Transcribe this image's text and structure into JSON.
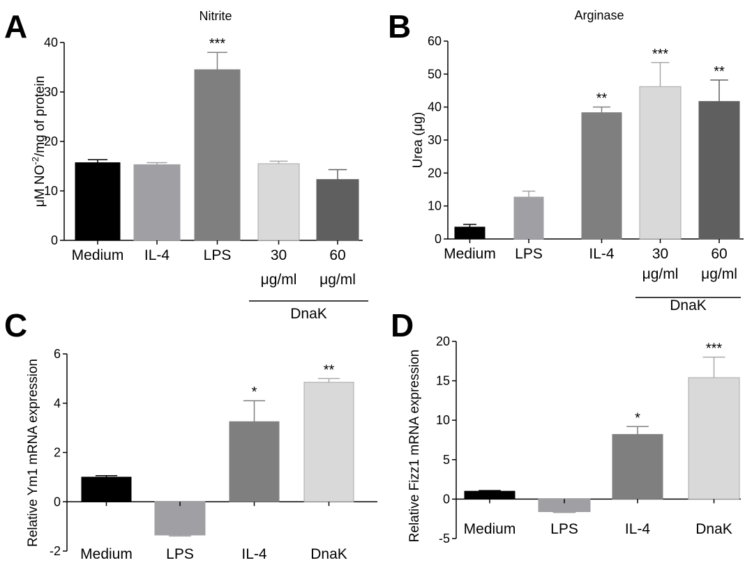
{
  "chart_data": [
    {
      "panel": "A",
      "type": "bar",
      "title": "Nitrite",
      "ylabel_parts": [
        "μM NO",
        "-2",
        "/mg of protein"
      ],
      "categories": [
        [
          "Medium"
        ],
        [
          "IL-4"
        ],
        [
          "LPS"
        ],
        [
          "30",
          "μg/ml"
        ],
        [
          "60",
          "μg/ml"
        ]
      ],
      "values": [
        15.7,
        15.3,
        34.5,
        15.5,
        12.3
      ],
      "errors": [
        0.6,
        0.4,
        3.5,
        0.5,
        2.0
      ],
      "colors": [
        "#000000",
        "#a0a0a4",
        "#7f7f7f",
        "#d9d9d9",
        "#5f5f5f"
      ],
      "significance": [
        "",
        "",
        "***",
        "",
        ""
      ],
      "ylim": [
        0,
        40
      ],
      "yticks": [
        0,
        10,
        20,
        30,
        40
      ],
      "group_label": "DnaK",
      "group_span": [
        3,
        4
      ]
    },
    {
      "panel": "B",
      "type": "bar",
      "title": "Arginase",
      "ylabel": "Urea (μg)",
      "categories": [
        [
          "Medium"
        ],
        [
          "LPS"
        ],
        [
          "IL-4"
        ],
        [
          "30",
          "μg/ml"
        ],
        [
          "60",
          "μg/ml"
        ]
      ],
      "values": [
        3.6,
        12.7,
        38.3,
        46.2,
        41.7
      ],
      "errors": [
        0.8,
        1.8,
        1.7,
        7.3,
        6.5
      ],
      "colors": [
        "#000000",
        "#a0a0a4",
        "#7f7f7f",
        "#d9d9d9",
        "#5f5f5f"
      ],
      "significance": [
        "",
        "",
        "**",
        "***",
        "**"
      ],
      "ylim": [
        0,
        60
      ],
      "yticks": [
        0,
        10,
        20,
        30,
        40,
        50,
        60
      ],
      "group_label": "DnaK",
      "group_span": [
        3,
        4
      ]
    },
    {
      "panel": "C",
      "type": "bar",
      "title": "",
      "ylabel": "Relative Ym1 mRNA expression",
      "categories": [
        [
          "Medium"
        ],
        [
          "LPS"
        ],
        [
          "IL-4"
        ],
        [
          "DnaK"
        ]
      ],
      "values": [
        1.0,
        -1.35,
        3.25,
        4.85
      ],
      "errors": [
        0.06,
        0.04,
        0.85,
        0.15
      ],
      "colors": [
        "#000000",
        "#a0a0a4",
        "#7f7f7f",
        "#d9d9d9"
      ],
      "significance": [
        "",
        "",
        "*",
        "**"
      ],
      "ylim": [
        -2,
        6
      ],
      "yticks": [
        -2,
        0,
        2,
        4,
        6
      ]
    },
    {
      "panel": "D",
      "type": "bar",
      "title": "",
      "ylabel": "Relative Fizz1 mRNA expression",
      "categories": [
        [
          "Medium"
        ],
        [
          "LPS"
        ],
        [
          "IL-4"
        ],
        [
          "DnaK"
        ]
      ],
      "values": [
        1.0,
        -1.6,
        8.2,
        15.4
      ],
      "errors": [
        0.08,
        0.1,
        1.0,
        2.6
      ],
      "colors": [
        "#000000",
        "#a0a0a4",
        "#7f7f7f",
        "#d9d9d9"
      ],
      "significance": [
        "",
        "",
        "*",
        "***"
      ],
      "ylim": [
        -5,
        20
      ],
      "yticks": [
        -5,
        0,
        5,
        10,
        15,
        20
      ]
    }
  ]
}
